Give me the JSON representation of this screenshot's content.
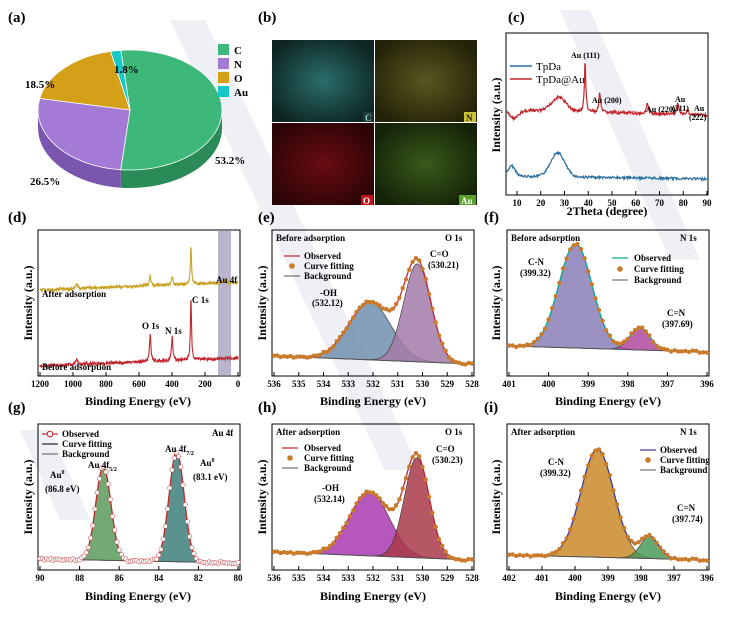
{
  "colors": {
    "observed": "#00a88a",
    "fit_dot": "#c97a2b",
    "red_line": "#c0272d",
    "pie_c": "#3db87a",
    "pie_n": "#a37bd6",
    "pie_o": "#d4a017",
    "pie_au": "#18c8c8"
  },
  "chart_data": [
    {
      "panel_label": "(a)",
      "type": "pie",
      "slices": [
        {
          "label": "C",
          "value": 53.2,
          "text": "53.2%",
          "color": "#3db87a"
        },
        {
          "label": "N",
          "value": 26.5,
          "text": "26.5%",
          "color": "#a37bd6"
        },
        {
          "label": "O",
          "value": 18.5,
          "text": "18.5%",
          "color": "#d4a017"
        },
        {
          "label": "Au",
          "value": 1.8,
          "text": "1.8%",
          "color": "#18c8c8"
        }
      ]
    },
    {
      "panel_label": "(b)",
      "type": "image-grid",
      "tiles": [
        {
          "label": "C",
          "color": "#1f6f6a"
        },
        {
          "label": "N",
          "color": "#c9c23a"
        },
        {
          "label": "O",
          "color": "#b8141c"
        },
        {
          "label": "Au",
          "color": "#4a8a26"
        }
      ]
    },
    {
      "panel_label": "(c)",
      "type": "line",
      "xlabel": "2Theta (degree)",
      "ylabel": "Intensity (a.u.)",
      "xlim": [
        5,
        90
      ],
      "xticks": [
        "10",
        "20",
        "30",
        "40",
        "50",
        "60",
        "70",
        "80",
        "90"
      ],
      "series": [
        {
          "name": "TpDa",
          "color": "#2a6fa0"
        },
        {
          "name": "TpDa@Au",
          "color": "#c0272d"
        }
      ],
      "annotations": [
        {
          "text": "Au (111)",
          "x": 38.2
        },
        {
          "text": "Au (200)",
          "x": 44.4
        },
        {
          "text": "Au (220)",
          "x": 64.6
        },
        {
          "text": "Au",
          "sub": "(311)",
          "x": 77.6
        },
        {
          "text": "Au",
          "sub": "(222)",
          "x": 81.7
        }
      ]
    },
    {
      "panel_label": "(d)",
      "type": "line",
      "xlabel": "Binding Energy (eV)",
      "ylabel": "Intensity (a.u.)",
      "xlim": [
        1200,
        0
      ],
      "xticks": [
        "1200",
        "1000",
        "800",
        "600",
        "400",
        "200",
        "0"
      ],
      "series": [
        {
          "name": "After adsorption",
          "color": "#c9a227"
        },
        {
          "name": "Before adsorption",
          "color": "#c0272d"
        }
      ],
      "peaks": [
        {
          "text": "C 1s",
          "x": 285
        },
        {
          "text": "O 1s",
          "x": 532
        },
        {
          "text": "N 1s",
          "x": 399
        },
        {
          "text": "Au 4f",
          "x": 84
        }
      ]
    },
    {
      "panel_label": "(e)",
      "type": "line",
      "title": "Before adsorption",
      "corner": "O 1s",
      "xlabel": "Binding Energy (eV)",
      "ylabel": "Intensity (a.u.)",
      "xticks": [
        "536",
        "535",
        "534",
        "533",
        "532",
        "531",
        "530",
        "529",
        "528"
      ],
      "legend": [
        "Observed",
        "Curve fitting",
        "Background"
      ],
      "components": [
        {
          "text": "-OH",
          "sub": "(532.12)"
        },
        {
          "text": "C=O",
          "sub": "(530.21)"
        }
      ]
    },
    {
      "panel_label": "(f)",
      "type": "line",
      "title": "Before adsorption",
      "corner": "N 1s",
      "xlabel": "Binding Energy (eV)",
      "ylabel": "Intensity (a.u.)",
      "xticks": [
        "401",
        "400",
        "399",
        "398",
        "397",
        "396"
      ],
      "legend": [
        "Observed",
        "Curve fitting",
        "Background"
      ],
      "components": [
        {
          "text": "C-N",
          "sub": "(399.32)"
        },
        {
          "text": "C=N",
          "sub": "(397.69)"
        }
      ]
    },
    {
      "panel_label": "(g)",
      "type": "line",
      "corner": "Au 4f",
      "xlabel": "Binding Energy (eV)",
      "ylabel": "Intensity (a.u.)",
      "xticks": [
        "90",
        "88",
        "86",
        "84",
        "82",
        "80"
      ],
      "legend": [
        "Observed",
        "Curve fitting",
        "Background"
      ],
      "components": [
        {
          "text": "Au 4f5/2",
          "sub": "Au0 (86.8 eV)"
        },
        {
          "text": "Au 4f7/2",
          "sub": "Au0 (83.1 eV)"
        }
      ]
    },
    {
      "panel_label": "(h)",
      "type": "line",
      "title": "After adsorption",
      "corner": "O 1s",
      "xlabel": "Binding Energy (eV)",
      "ylabel": "Intensity (a.u.)",
      "xticks": [
        "536",
        "535",
        "534",
        "533",
        "532",
        "531",
        "530",
        "529",
        "528"
      ],
      "legend": [
        "Observed",
        "Curve fitting",
        "Background"
      ],
      "components": [
        {
          "text": "-OH",
          "sub": "(532.14)"
        },
        {
          "text": "C=O",
          "sub": "(530.23)"
        }
      ]
    },
    {
      "panel_label": "(i)",
      "type": "line",
      "title": "After adsorption",
      "corner": "N 1s",
      "xlabel": "Binding Energy (eV)",
      "ylabel": "Intensity (a.u.)",
      "xticks": [
        "402",
        "401",
        "400",
        "399",
        "398",
        "397",
        "396"
      ],
      "legend": [
        "Observed",
        "Curve fitting",
        "Background"
      ],
      "components": [
        {
          "text": "C-N",
          "sub": "(399.32)"
        },
        {
          "text": "C=N",
          "sub": "(397.74)"
        }
      ]
    }
  ],
  "labels": {
    "a": "(a)",
    "b": "(b)",
    "c": "(c)",
    "d": "(d)",
    "e": "(e)",
    "f": "(f)",
    "g": "(g)",
    "h": "(h)",
    "i": "(i)",
    "intensity": "Intensity (a.u.)",
    "be": "Binding Energy (eV)",
    "theta": "2Theta (degree)",
    "observed": "Observed",
    "fitting": "Curve fitting",
    "background": "Background",
    "before": "Before adsorption",
    "after": "After adsorption",
    "o1s": "O 1s",
    "n1s": "N 1s",
    "au4f": "Au 4f",
    "c1s": "C 1s",
    "au4f_d": "Au 4f",
    "pie_c": "C",
    "pie_n": "N",
    "pie_o": "O",
    "pie_au": "Au",
    "pct_c": "53.2%",
    "pct_n": "26.5%",
    "pct_o": "18.5%",
    "pct_au": "1.8%",
    "tile_c": "C",
    "tile_n": "N",
    "tile_o": "O",
    "tile_au": "Au",
    "tpda": "TpDa",
    "tpdaau": "TpDa@Au",
    "au111": "Au (111)",
    "au200": "Au (200)",
    "au220": "Au (220)",
    "au311a": "Au",
    "au311b": "(311)",
    "au222a": "Au",
    "au222b": "(222)",
    "oh": "-OH",
    "oh_e": "(532.12)",
    "co": "C=O",
    "co_e": "(530.21)",
    "cn": "C-N",
    "cn_f": "(399.32)",
    "cdn": "C=N",
    "cdn_f": "(397.69)",
    "au0a": "Au",
    "au0b": "(86.8 eV)",
    "au52": "Au 4f",
    "au0c": "Au",
    "au0d": "(83.1 eV)",
    "au72": "Au 4f",
    "oh_h": "-OH",
    "oh_he": "(532.14)",
    "co_h": "C=O",
    "co_he": "(530.23)",
    "cn_i": "C-N",
    "cn_ie": "(399.32)",
    "cdn_i": "C=N",
    "cdn_ie": "(397.74)",
    "o1s_d": "O 1s",
    "n1s_d": "N 1s"
  },
  "ticks": {
    "c": [
      "10",
      "20",
      "30",
      "40",
      "50",
      "60",
      "70",
      "80",
      "90"
    ],
    "d": [
      "1200",
      "1000",
      "800",
      "600",
      "400",
      "200",
      "0"
    ],
    "e": [
      "536",
      "535",
      "534",
      "533",
      "532",
      "531",
      "530",
      "529",
      "528"
    ],
    "f": [
      "401",
      "400",
      "399",
      "398",
      "397",
      "396"
    ],
    "g": [
      "90",
      "88",
      "86",
      "84",
      "82",
      "80"
    ],
    "h": [
      "536",
      "535",
      "534",
      "533",
      "532",
      "531",
      "530",
      "529",
      "528"
    ],
    "i": [
      "402",
      "401",
      "400",
      "399",
      "398",
      "397",
      "396"
    ]
  }
}
